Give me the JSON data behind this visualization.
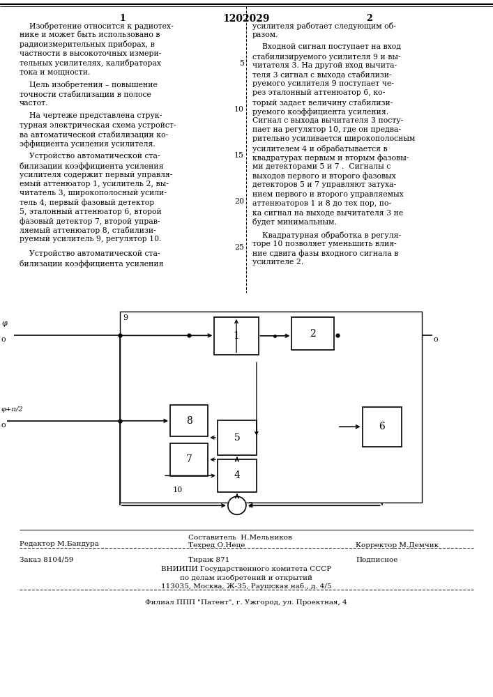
{
  "title": "1202029",
  "left_col_text": [
    "    Изобретение относится к радиотех-",
    "нике и может быть использовано в",
    "радиоизмерительных приборах, в",
    "частности в высокоточных измери-",
    "тельных усилителях, калибраторах",
    "тока и мощности.",
    "    Цель изобретения – повышение",
    "точности стабилизации в полосе",
    "частот.",
    "    На чертеже представлена струк-",
    "турная электрическая схема устройст-",
    "ва автоматической стабилизации ко-",
    "эффициента усиления усилителя.",
    "    Устройство автоматической ста-",
    "билизации коэффициента усиления",
    "усилителя содержит первый управля-",
    "емый аттенюатор 1, усилитель 2, вы-",
    "читатель 3, широкополосный усили-",
    "тель 4, первый фазовый детектор",
    "5, эталонный аттенюатор 6, второй",
    "фазовый детектор 7, второй управ-",
    "ляемый аттенюатор 8, стабилизи-",
    "руемый усилитель 9, регулятор 10.",
    "    Устройство автоматической ста-",
    "билизации коэффициента усиления"
  ],
  "right_col_text": [
    "усилителя работает следующим об-",
    "разом.",
    "    Входной сигнал поступает на вход",
    "стабилизируемого усилителя 9 и вы-",
    "читателя 3. На другой вход вычита-",
    "теля 3 сигнал с выхода стабилизи-",
    "руемого усилителя 9 поступает че-",
    "рез эталонный аттенюатор 6, ко-",
    "торый задает величину стабилизи-",
    "руемого коэффициента усиления.",
    "Сигнал с выхода вычитателя 3 посту-",
    "пает на регулятор 10, где он предва-",
    "рительно усиливается широкополосным",
    "усилителем 4 и обрабатывается в",
    "квадратурах первым и вторым фазовы-",
    "ми детекторами 5 и 7 .  Сигналы с",
    "выходов первого и второго фазовых",
    "детекторов 5 и 7 управляют затуха-",
    "нием первого и второго управляемых",
    "аттенюаторов 1 и 8 до тех пор, по-",
    "ка сигнал на выходе вычитателя 3 не",
    "будет минимальным.",
    "    Квадратурная обработка в регуля-",
    "торе 10 позволяет уменьшить влия-",
    "ние сдвига фазы входного сигнала в",
    "усилителе 2."
  ],
  "line_numbers_y": [
    4,
    9,
    14,
    19,
    24
  ],
  "line_number_labels": [
    "5",
    "10",
    "15",
    "20",
    "25"
  ],
  "footer_texts": {
    "editor": "Редактор М.Бандура",
    "composer": "Составитель  Н.Мельников",
    "techred": "Техред О.Неце",
    "corrector": "Корректор М.Демчик",
    "order": "Заказ 8104/59",
    "tirazh": "Тираж 871",
    "podpisnoe": "Подписное",
    "org1": "ВНИИПИ Государственного комитета СССР",
    "org2": "по делам изобретений и открытий",
    "org3": "113035, Москва, Ж-35, Раушская наб., д. 4/5",
    "filial": "Филиал ППП \"Патент\", г. Ужгород, ул. Проектная, 4"
  }
}
